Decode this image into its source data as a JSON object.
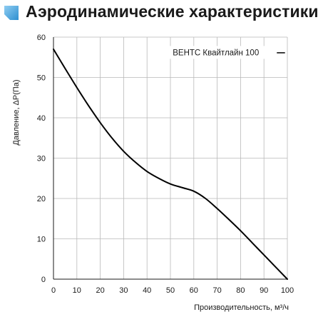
{
  "header": {
    "title": "Аэродинамические характеристики",
    "accent_color": "#2e8fd0"
  },
  "chart_data": {
    "type": "line",
    "title": "",
    "xlabel": "Производительность, м³/ч",
    "ylabel": "Давление, ΔP(Па)",
    "xlim": [
      0,
      100
    ],
    "ylim": [
      0,
      60
    ],
    "x_ticks": [
      0,
      10,
      20,
      30,
      40,
      50,
      60,
      70,
      80,
      90,
      100
    ],
    "y_ticks": [
      0,
      10,
      20,
      30,
      40,
      50,
      60
    ],
    "grid": true,
    "legend_position": "top-right",
    "series": [
      {
        "name": "ВЕНТС Квайтлайн 100",
        "color": "#000000",
        "x": [
          0,
          5,
          10,
          15,
          20,
          25,
          30,
          35,
          40,
          45,
          50,
          55,
          60,
          65,
          70,
          75,
          80,
          85,
          90,
          95,
          100
        ],
        "y": [
          57,
          52.2,
          47.5,
          43,
          38.8,
          35,
          31.7,
          29,
          26.7,
          25,
          23.6,
          22.7,
          21.8,
          20,
          17.5,
          14.8,
          12,
          9,
          6,
          3,
          0
        ]
      }
    ]
  }
}
